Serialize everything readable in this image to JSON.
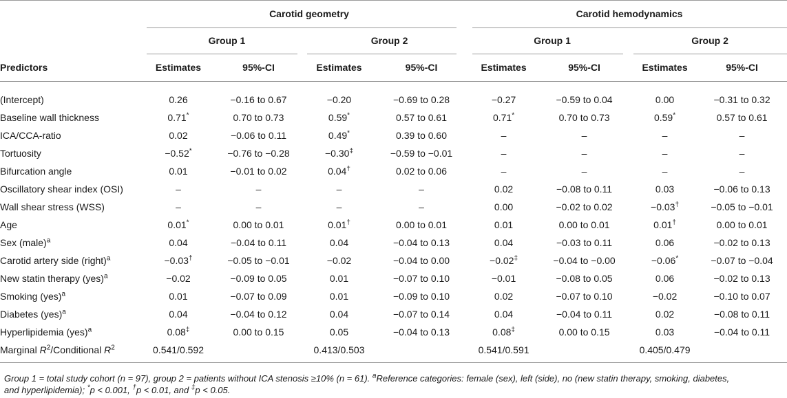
{
  "header": {
    "geometry_title": "Carotid geometry",
    "hemodynamics_title": "Carotid hemodynamics",
    "group1": "Group 1",
    "group2": "Group 2",
    "predictors": "Predictors",
    "estimates": "Estimates",
    "ci": "95%-CI"
  },
  "rows": [
    {
      "label": "(Intercept)",
      "label_sup": "",
      "cells": [
        [
          "0.26",
          ""
        ],
        [
          "−0.16 to 0.67",
          ""
        ],
        [
          "−0.20",
          ""
        ],
        [
          "−0.69 to 0.28",
          ""
        ],
        [
          "−0.27",
          ""
        ],
        [
          "−0.59 to 0.04",
          ""
        ],
        [
          "0.00",
          ""
        ],
        [
          "−0.31 to 0.32",
          ""
        ]
      ]
    },
    {
      "label": "Baseline wall thickness",
      "label_sup": "",
      "cells": [
        [
          "0.71",
          "*"
        ],
        [
          "0.70 to 0.73",
          ""
        ],
        [
          "0.59",
          "*"
        ],
        [
          "0.57 to 0.61",
          ""
        ],
        [
          "0.71",
          "*"
        ],
        [
          "0.70 to 0.73",
          ""
        ],
        [
          "0.59",
          "*"
        ],
        [
          "0.57 to 0.61",
          ""
        ]
      ]
    },
    {
      "label": "ICA/CCA-ratio",
      "label_sup": "",
      "cells": [
        [
          "0.02",
          ""
        ],
        [
          "−0.06 to 0.11",
          ""
        ],
        [
          "0.49",
          "*"
        ],
        [
          "0.39 to 0.60",
          ""
        ],
        [
          "–",
          ""
        ],
        [
          "–",
          ""
        ],
        [
          "–",
          ""
        ],
        [
          "–",
          ""
        ]
      ]
    },
    {
      "label": "Tortuosity",
      "label_sup": "",
      "cells": [
        [
          "−0.52",
          "*"
        ],
        [
          "−0.76 to −0.28",
          ""
        ],
        [
          "−0.30",
          "‡"
        ],
        [
          "−0.59 to −0.01",
          ""
        ],
        [
          "–",
          ""
        ],
        [
          "–",
          ""
        ],
        [
          "–",
          ""
        ],
        [
          "–",
          ""
        ]
      ]
    },
    {
      "label": "Bifurcation angle",
      "label_sup": "",
      "cells": [
        [
          "0.01",
          ""
        ],
        [
          "−0.01 to 0.02",
          ""
        ],
        [
          "0.04",
          "†"
        ],
        [
          "0.02 to 0.06",
          ""
        ],
        [
          "–",
          ""
        ],
        [
          "–",
          ""
        ],
        [
          "–",
          ""
        ],
        [
          "–",
          ""
        ]
      ]
    },
    {
      "label": "Oscillatory shear index (OSI)",
      "label_sup": "",
      "cells": [
        [
          "–",
          ""
        ],
        [
          "–",
          ""
        ],
        [
          "–",
          ""
        ],
        [
          "–",
          ""
        ],
        [
          "0.02",
          ""
        ],
        [
          "−0.08 to 0.11",
          ""
        ],
        [
          "0.03",
          ""
        ],
        [
          "−0.06 to 0.13",
          ""
        ]
      ]
    },
    {
      "label": "Wall shear stress (WSS)",
      "label_sup": "",
      "cells": [
        [
          "–",
          ""
        ],
        [
          "–",
          ""
        ],
        [
          "–",
          ""
        ],
        [
          "–",
          ""
        ],
        [
          "0.00",
          ""
        ],
        [
          "−0.02 to 0.02",
          ""
        ],
        [
          "−0.03",
          "†"
        ],
        [
          "−0.05 to −0.01",
          ""
        ]
      ]
    },
    {
      "label": "Age",
      "label_sup": "",
      "cells": [
        [
          "0.01",
          "*"
        ],
        [
          "0.00 to 0.01",
          ""
        ],
        [
          "0.01",
          "†"
        ],
        [
          "0.00 to 0.01",
          ""
        ],
        [
          "0.01",
          ""
        ],
        [
          "0.00 to 0.01",
          ""
        ],
        [
          "0.01",
          "†"
        ],
        [
          "0.00 to 0.01",
          ""
        ]
      ]
    },
    {
      "label": "Sex (male)",
      "label_sup": "a",
      "cells": [
        [
          "0.04",
          ""
        ],
        [
          "−0.04 to 0.11",
          ""
        ],
        [
          "0.04",
          ""
        ],
        [
          "−0.04 to 0.13",
          ""
        ],
        [
          "0.04",
          ""
        ],
        [
          "−0.03 to 0.11",
          ""
        ],
        [
          "0.06",
          ""
        ],
        [
          "−0.02 to 0.13",
          ""
        ]
      ]
    },
    {
      "label": "Carotid artery side (right)",
      "label_sup": "a",
      "cells": [
        [
          "−0.03",
          "†"
        ],
        [
          "−0.05 to −0.01",
          ""
        ],
        [
          "−0.02",
          ""
        ],
        [
          "−0.04 to 0.00",
          ""
        ],
        [
          "−0.02",
          "‡"
        ],
        [
          "−0.04 to −0.00",
          ""
        ],
        [
          "−0.06",
          "*"
        ],
        [
          "−0.07 to −0.04",
          ""
        ]
      ]
    },
    {
      "label": "New statin therapy (yes)",
      "label_sup": "a",
      "cells": [
        [
          "−0.02",
          ""
        ],
        [
          "−0.09 to 0.05",
          ""
        ],
        [
          "0.01",
          ""
        ],
        [
          "−0.07 to 0.10",
          ""
        ],
        [
          "−0.01",
          ""
        ],
        [
          "−0.08 to 0.05",
          ""
        ],
        [
          "0.06",
          ""
        ],
        [
          "−0.02 to 0.13",
          ""
        ]
      ]
    },
    {
      "label": "Smoking (yes)",
      "label_sup": "a",
      "cells": [
        [
          "0.01",
          ""
        ],
        [
          "−0.07 to 0.09",
          ""
        ],
        [
          "0.01",
          ""
        ],
        [
          "−0.09 to 0.10",
          ""
        ],
        [
          "0.02",
          ""
        ],
        [
          "−0.07 to 0.10",
          ""
        ],
        [
          "−0.02",
          ""
        ],
        [
          "−0.10 to 0.07",
          ""
        ]
      ]
    },
    {
      "label": "Diabetes (yes)",
      "label_sup": "a",
      "cells": [
        [
          "0.04",
          ""
        ],
        [
          "−0.04 to 0.12",
          ""
        ],
        [
          "0.04",
          ""
        ],
        [
          "−0.07 to 0.14",
          ""
        ],
        [
          "0.04",
          ""
        ],
        [
          "−0.04 to 0.11",
          ""
        ],
        [
          "0.02",
          ""
        ],
        [
          "−0.08 to 0.11",
          ""
        ]
      ]
    },
    {
      "label": "Hyperlipidemia (yes)",
      "label_sup": "a",
      "cells": [
        [
          "0.08",
          "‡"
        ],
        [
          "0.00 to 0.15",
          ""
        ],
        [
          "0.05",
          ""
        ],
        [
          "−0.04 to 0.13",
          ""
        ],
        [
          "0.08",
          "‡"
        ],
        [
          "0.00 to 0.15",
          ""
        ],
        [
          "0.03",
          ""
        ],
        [
          "−0.04 to 0.11",
          ""
        ]
      ]
    }
  ],
  "r2_row": {
    "label_part1": "Marginal ",
    "label_r": "R",
    "label_sup": "2",
    "label_part2": "/Conditional ",
    "values": [
      "0.541/0.592",
      "0.413/0.503",
      "0.541/0.591",
      "0.405/0.479"
    ]
  },
  "footnote": {
    "line1": "Group 1 = total study cohort (n = 97), group 2 = patients without ICA stenosis ≥10% (n = 61). ",
    "sup_a": "a",
    "line1b": "Reference categories: female (sex), left (side), no (new statin therapy, smoking, diabetes,",
    "line2a": "and hyperlipidemia); ",
    "mark_star": "*",
    "line2b": "p < 0.001, ",
    "mark_dagger": "†",
    "line2c": "p < 0.01, and ",
    "mark_ddagger": "‡",
    "line2d": "p < 0.05."
  }
}
